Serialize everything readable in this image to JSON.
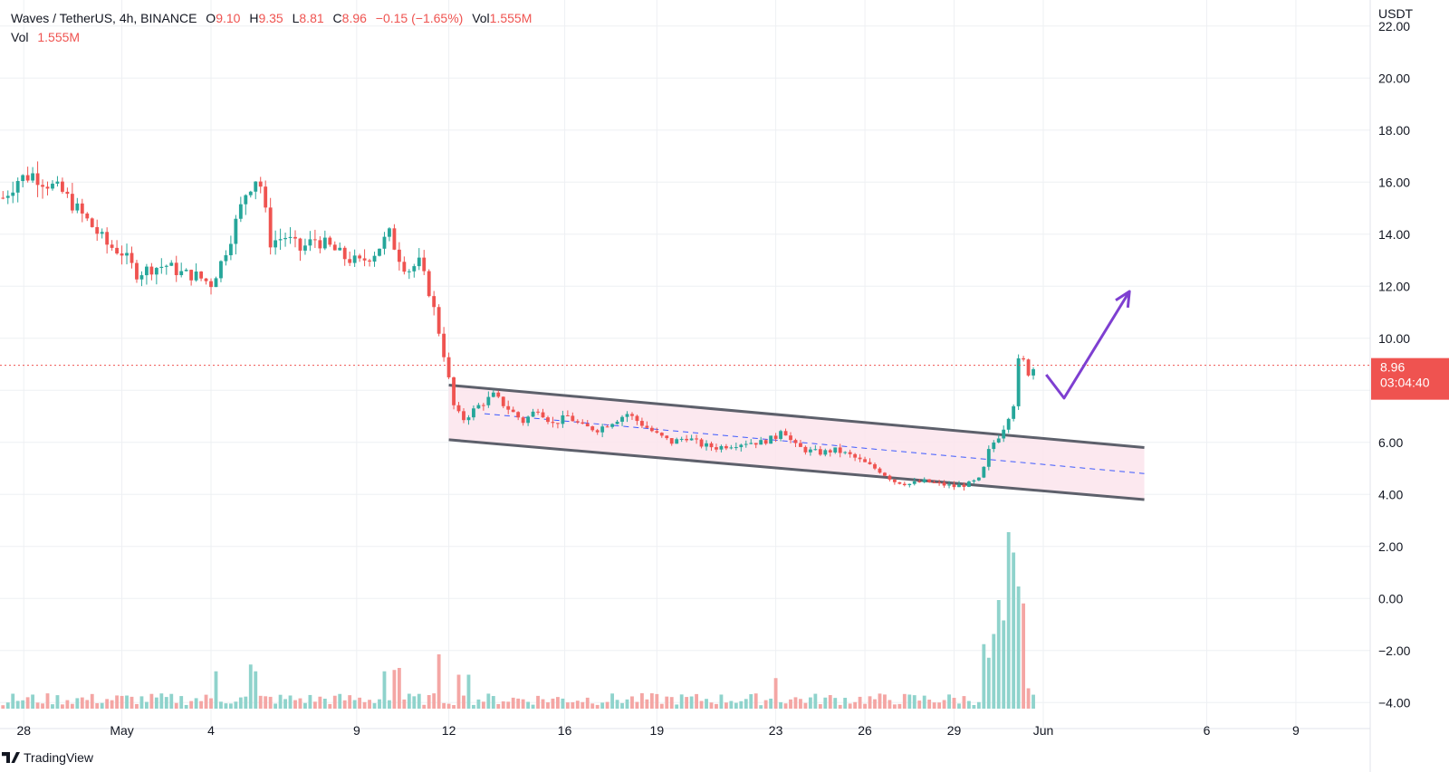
{
  "header": {
    "symbol": "Waves / TetherUS, 4h, BINANCE",
    "o_label": "O",
    "o_value": "9.10",
    "h_label": "H",
    "h_value": "9.35",
    "l_label": "L",
    "l_value": "8.81",
    "c_label": "C",
    "c_value": "8.96",
    "change": "−0.15 (−1.65%)",
    "vol_label": "Vol",
    "vol_value": "1.555M",
    "vol_row_label": "Vol",
    "vol_row_value": "1.555M"
  },
  "price_tag": {
    "price": "8.96",
    "countdown": "03:04:40"
  },
  "logo_text": "TradingView",
  "colors": {
    "up": "#26a69a",
    "down": "#ef5350",
    "channel_fill": "#fce4ec",
    "channel_line": "#5d606b",
    "arrow": "#7e3fd1",
    "midline": "#3d5afe",
    "grid": "#eef0f3"
  },
  "chart_data": {
    "type": "candlestick",
    "currency_label": "USDT",
    "y_ticks": [
      "22.00",
      "20.00",
      "18.00",
      "16.00",
      "14.00",
      "12.00",
      "10.00",
      "8.00",
      "6.00",
      "4.00",
      "2.00",
      "0.00",
      "−2.00",
      "−4.00"
    ],
    "y_tick_values": [
      22,
      20,
      18,
      16,
      14,
      12,
      10,
      8,
      6,
      4,
      2,
      0,
      -2,
      -4
    ],
    "ylim": [
      -5,
      23
    ],
    "x_ticks": [
      "28",
      "May",
      "4",
      "9",
      "12",
      "16",
      "19",
      "23",
      "26",
      "29",
      "Jun",
      "6",
      "9"
    ],
    "x_tick_days": [
      -2.3,
      1,
      4,
      8.9,
      12,
      15.9,
      19,
      23,
      26,
      29,
      32,
      37.5,
      40.5
    ],
    "xlim": [
      -3.1,
      43
    ],
    "current_price": 8.96,
    "anchors": [
      {
        "t": -3.0,
        "p": 15.4
      },
      {
        "t": -2.5,
        "p": 16.1
      },
      {
        "t": -2.0,
        "p": 16.3
      },
      {
        "t": -1.0,
        "p": 15.6
      },
      {
        "t": 0.0,
        "p": 14.3
      },
      {
        "t": 0.5,
        "p": 13.6
      },
      {
        "t": 1.0,
        "p": 13.3
      },
      {
        "t": 1.5,
        "p": 12.5
      },
      {
        "t": 2.0,
        "p": 12.7
      },
      {
        "t": 2.5,
        "p": 12.8
      },
      {
        "t": 3.0,
        "p": 12.5
      },
      {
        "t": 3.5,
        "p": 12.4
      },
      {
        "t": 4.0,
        "p": 12.1
      },
      {
        "t": 4.3,
        "p": 12.8
      },
      {
        "t": 4.7,
        "p": 14.0
      },
      {
        "t": 5.2,
        "p": 15.7
      },
      {
        "t": 5.6,
        "p": 16.3
      },
      {
        "t": 6.0,
        "p": 13.7
      },
      {
        "t": 6.5,
        "p": 13.9
      },
      {
        "t": 7.0,
        "p": 13.4
      },
      {
        "t": 7.5,
        "p": 13.8
      },
      {
        "t": 8.0,
        "p": 13.5
      },
      {
        "t": 8.5,
        "p": 13.1
      },
      {
        "t": 9.0,
        "p": 12.9
      },
      {
        "t": 9.5,
        "p": 13.3
      },
      {
        "t": 10.0,
        "p": 14.0
      },
      {
        "t": 10.3,
        "p": 13.2
      },
      {
        "t": 10.6,
        "p": 12.6
      },
      {
        "t": 11.0,
        "p": 12.9
      },
      {
        "t": 11.4,
        "p": 11.6
      },
      {
        "t": 11.8,
        "p": 9.6
      },
      {
        "t": 12.2,
        "p": 7.2
      },
      {
        "t": 12.5,
        "p": 6.9
      },
      {
        "t": 13.0,
        "p": 7.4
      },
      {
        "t": 13.5,
        "p": 7.8
      },
      {
        "t": 14.0,
        "p": 7.3
      },
      {
        "t": 14.5,
        "p": 6.8
      },
      {
        "t": 15.0,
        "p": 7.3
      },
      {
        "t": 15.5,
        "p": 6.7
      },
      {
        "t": 16.0,
        "p": 7.0
      },
      {
        "t": 16.5,
        "p": 6.6
      },
      {
        "t": 17.0,
        "p": 6.5
      },
      {
        "t": 17.5,
        "p": 6.8
      },
      {
        "t": 18.0,
        "p": 7.1
      },
      {
        "t": 18.5,
        "p": 6.7
      },
      {
        "t": 19.0,
        "p": 6.3
      },
      {
        "t": 19.5,
        "p": 6.0
      },
      {
        "t": 20.0,
        "p": 6.2
      },
      {
        "t": 20.5,
        "p": 5.9
      },
      {
        "t": 21.0,
        "p": 5.8
      },
      {
        "t": 21.5,
        "p": 5.9
      },
      {
        "t": 22.0,
        "p": 6.0
      },
      {
        "t": 22.5,
        "p": 6.0
      },
      {
        "t": 23.0,
        "p": 6.2
      },
      {
        "t": 23.2,
        "p": 6.6
      },
      {
        "t": 23.6,
        "p": 5.9
      },
      {
        "t": 24.0,
        "p": 5.7
      },
      {
        "t": 24.5,
        "p": 5.6
      },
      {
        "t": 25.0,
        "p": 5.7
      },
      {
        "t": 25.5,
        "p": 5.5
      },
      {
        "t": 26.0,
        "p": 5.2
      },
      {
        "t": 26.5,
        "p": 4.9
      },
      {
        "t": 27.0,
        "p": 4.5
      },
      {
        "t": 27.5,
        "p": 4.4
      },
      {
        "t": 28.0,
        "p": 4.5
      },
      {
        "t": 28.5,
        "p": 4.4
      },
      {
        "t": 29.0,
        "p": 4.3
      },
      {
        "t": 29.5,
        "p": 4.4
      },
      {
        "t": 29.9,
        "p": 4.6
      },
      {
        "t": 30.2,
        "p": 5.8
      },
      {
        "t": 30.6,
        "p": 6.4
      },
      {
        "t": 31.0,
        "p": 7.5
      },
      {
        "t": 31.2,
        "p": 9.4
      },
      {
        "t": 31.5,
        "p": 8.7
      },
      {
        "t": 31.8,
        "p": 8.96
      }
    ],
    "volume_bars": [
      {
        "t": 30.0,
        "v": 0.95
      },
      {
        "t": 30.15,
        "v": 0.75
      },
      {
        "t": 30.3,
        "v": 1.1
      },
      {
        "t": 30.45,
        "v": 1.6
      },
      {
        "t": 30.6,
        "v": 1.3
      },
      {
        "t": 30.75,
        "v": 1.25
      },
      {
        "t": 30.9,
        "v": 2.6
      },
      {
        "t": 31.05,
        "v": 2.3
      },
      {
        "t": 31.2,
        "v": 1.8
      },
      {
        "t": 31.35,
        "v": 1.55
      },
      {
        "t": 31.5,
        "v": 0.3
      }
    ],
    "volume_spikes": [
      {
        "t": 4.2,
        "v": 0.55
      },
      {
        "t": 5.3,
        "v": 0.65
      },
      {
        "t": 5.5,
        "v": 0.55
      },
      {
        "t": 9.9,
        "v": 0.55
      },
      {
        "t": 10.1,
        "v": 0.57
      },
      {
        "t": 10.3,
        "v": 0.6
      },
      {
        "t": 11.6,
        "v": 0.8
      },
      {
        "t": 12.3,
        "v": 0.5
      },
      {
        "t": 12.6,
        "v": 0.5
      },
      {
        "t": 23.0,
        "v": 0.45
      }
    ],
    "channel": {
      "upper": [
        {
          "t": 12.0,
          "p": 8.2
        },
        {
          "t": 35.4,
          "p": 5.8
        }
      ],
      "lower": [
        {
          "t": 12.0,
          "p": 6.1
        },
        {
          "t": 35.4,
          "p": 3.8
        }
      ],
      "mid": [
        {
          "t": 13.2,
          "p": 7.1
        },
        {
          "t": 35.4,
          "p": 4.8
        }
      ]
    },
    "arrow_path": [
      {
        "t": 32.1,
        "p": 8.6
      },
      {
        "t": 32.7,
        "p": 7.7
      },
      {
        "t": 34.9,
        "p": 11.8
      }
    ]
  }
}
